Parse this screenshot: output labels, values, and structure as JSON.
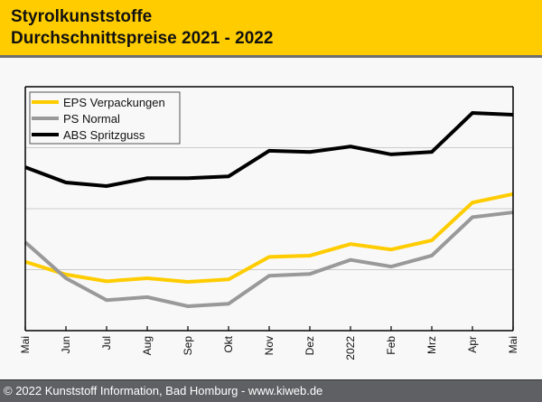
{
  "header": {
    "title_line1": "Styrolkunststoffe",
    "title_line2": "Durchschnittspreise 2021 - 2022"
  },
  "footer": {
    "copyright": "© 2022 Kunststoff Information, Bad Homburg - www.kiweb.de"
  },
  "colors": {
    "header_bg": "#ffcc00",
    "footer_bg": "#5f6064",
    "eps": "#ffcc00",
    "ps": "#999999",
    "abs": "#000000"
  },
  "chart_data": {
    "type": "line",
    "title": "Styrolkunststoffe Durchschnittspreise 2021 - 2022",
    "xlabel": "",
    "ylabel": "",
    "y_note": "No y-axis tick labels shown; values are relative units read from gridlines (gridlines at 1, 2, 3).",
    "ylim": [
      0,
      4
    ],
    "y_gridlines": [
      1,
      2,
      3
    ],
    "grid": true,
    "legend_position": "top-left",
    "categories": [
      "Mai",
      "Jun",
      "Jul",
      "Aug",
      "Sep",
      "Okt",
      "Nov",
      "Dez",
      "2022",
      "Feb",
      "Mrz",
      "Apr",
      "Mai"
    ],
    "series": [
      {
        "name": "EPS Verpackungen",
        "color": "#ffcc00",
        "values": [
          1.13,
          0.92,
          0.81,
          0.86,
          0.8,
          0.84,
          1.21,
          1.23,
          1.42,
          1.33,
          1.48,
          2.1,
          2.24
        ]
      },
      {
        "name": "PS Normal",
        "color": "#999999",
        "values": [
          1.45,
          0.86,
          0.5,
          0.55,
          0.4,
          0.44,
          0.9,
          0.93,
          1.16,
          1.05,
          1.23,
          1.86,
          1.94
        ]
      },
      {
        "name": "ABS Spritzguss",
        "color": "#000000",
        "values": [
          2.68,
          2.43,
          2.37,
          2.5,
          2.5,
          2.53,
          2.95,
          2.93,
          3.02,
          2.89,
          2.93,
          3.57,
          3.54
        ]
      }
    ]
  }
}
